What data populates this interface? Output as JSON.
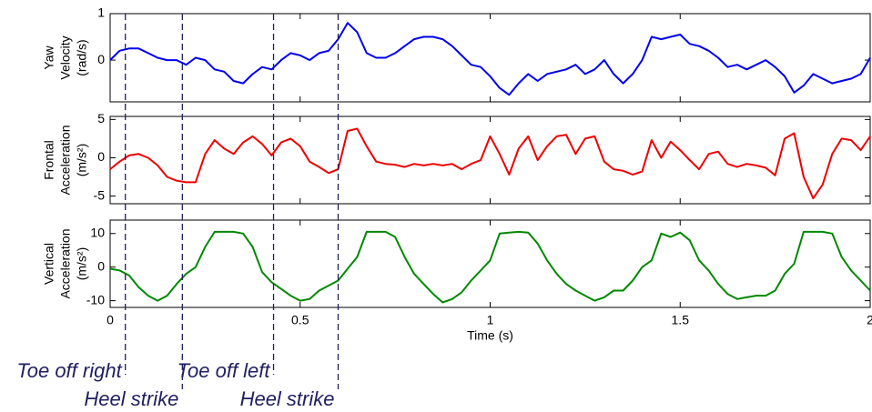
{
  "chart_data": [
    {
      "type": "line",
      "ylabel": [
        "Yaw",
        "Velocity",
        "(rad/s)"
      ],
      "x": [
        0,
        0.025,
        0.05,
        0.075,
        0.1,
        0.125,
        0.15,
        0.175,
        0.2,
        0.225,
        0.25,
        0.275,
        0.3,
        0.325,
        0.35,
        0.375,
        0.4,
        0.425,
        0.45,
        0.475,
        0.5,
        0.525,
        0.55,
        0.575,
        0.6,
        0.625,
        0.65,
        0.675,
        0.7,
        0.725,
        0.75,
        0.775,
        0.8,
        0.825,
        0.85,
        0.875,
        0.9,
        0.925,
        0.95,
        0.975,
        1,
        1.025,
        1.05,
        1.075,
        1.1,
        1.125,
        1.15,
        1.175,
        1.2,
        1.225,
        1.25,
        1.275,
        1.3,
        1.325,
        1.35,
        1.375,
        1.4,
        1.425,
        1.45,
        1.475,
        1.5,
        1.525,
        1.55,
        1.575,
        1.6,
        1.625,
        1.65,
        1.675,
        1.7,
        1.725,
        1.75,
        1.775,
        1.8,
        1.825,
        1.85,
        1.875,
        1.9,
        1.925,
        1.95,
        1.975,
        2
      ],
      "series": [
        {
          "color": "#0000ee",
          "values": [
            0,
            0.2,
            0.25,
            0.25,
            0.15,
            0.05,
            0,
            0,
            -0.1,
            0.05,
            0,
            -0.2,
            -0.25,
            -0.45,
            -0.5,
            -0.3,
            -0.15,
            -0.2,
            0,
            0.15,
            0.1,
            0,
            0.15,
            0.2,
            0.45,
            0.8,
            0.6,
            0.15,
            0.05,
            0.05,
            0.15,
            0.3,
            0.45,
            0.5,
            0.5,
            0.45,
            0.3,
            0.1,
            -0.1,
            -0.15,
            -0.35,
            -0.6,
            -0.75,
            -0.5,
            -0.3,
            -0.45,
            -0.3,
            -0.25,
            -0.2,
            -0.1,
            -0.3,
            -0.2,
            0,
            -0.3,
            -0.5,
            -0.3,
            0,
            0.5,
            0.45,
            0.5,
            0.55,
            0.35,
            0.3,
            0.2,
            0.05,
            -0.15,
            -0.1,
            -0.2,
            -0.1,
            0,
            -0.15,
            -0.35,
            -0.7,
            -0.55,
            -0.3,
            -0.4,
            -0.5,
            -0.45,
            -0.4,
            -0.3,
            0.05
          ]
        }
      ],
      "xlim": [
        0,
        2
      ],
      "xticks": [
        0,
        0.5,
        1,
        1.5,
        2
      ],
      "ylim": [
        -0.9,
        1
      ],
      "yticks": [
        0,
        1
      ]
    },
    {
      "type": "line",
      "ylabel": [
        "Frontal",
        "Acceleration",
        "(m/s²)"
      ],
      "x": [
        0,
        0.025,
        0.05,
        0.075,
        0.1,
        0.125,
        0.15,
        0.175,
        0.2,
        0.225,
        0.25,
        0.275,
        0.3,
        0.325,
        0.35,
        0.375,
        0.4,
        0.425,
        0.45,
        0.475,
        0.5,
        0.525,
        0.55,
        0.575,
        0.6,
        0.625,
        0.65,
        0.675,
        0.7,
        0.725,
        0.75,
        0.775,
        0.8,
        0.825,
        0.85,
        0.875,
        0.9,
        0.925,
        0.95,
        0.975,
        1,
        1.025,
        1.05,
        1.075,
        1.1,
        1.125,
        1.15,
        1.175,
        1.2,
        1.225,
        1.25,
        1.275,
        1.3,
        1.325,
        1.35,
        1.375,
        1.4,
        1.425,
        1.45,
        1.475,
        1.5,
        1.525,
        1.55,
        1.575,
        1.6,
        1.625,
        1.65,
        1.675,
        1.7,
        1.725,
        1.75,
        1.775,
        1.8,
        1.825,
        1.85,
        1.875,
        1.9,
        1.925,
        1.95,
        1.975,
        2
      ],
      "series": [
        {
          "color": "#ee0000",
          "values": [
            -1.5,
            -0.5,
            0.3,
            0.5,
            0,
            -1,
            -2.5,
            -3,
            -3.2,
            -3.2,
            0.5,
            2.3,
            1.2,
            0.5,
            2,
            2.8,
            1.8,
            0.3,
            2,
            2.5,
            1.5,
            -0.5,
            -1.2,
            -2,
            -1.5,
            3.5,
            3.8,
            1.5,
            -0.5,
            -0.8,
            -0.9,
            -1.2,
            -0.8,
            -1,
            -0.8,
            -1,
            -0.8,
            -1.5,
            -0.8,
            -0.3,
            2.8,
            0.5,
            -2.2,
            1.2,
            2.8,
            -0.3,
            1.5,
            2.8,
            3,
            0.5,
            2.5,
            2.8,
            -0.5,
            -1.5,
            -1.7,
            -2.2,
            -1.8,
            2.3,
            0,
            2.1,
            1,
            -0.3,
            -1.5,
            0.5,
            0.8,
            -0.8,
            -1.2,
            -0.8,
            -1,
            -1.3,
            -2.3,
            2.5,
            3.2,
            -2.5,
            -5.3,
            -3.5,
            0.5,
            2.5,
            2.3,
            1,
            2.8
          ]
        }
      ],
      "xlim": [
        0,
        2
      ],
      "xticks": [
        0,
        0.5,
        1,
        1.5,
        2
      ],
      "ylim": [
        -6,
        5.4
      ],
      "yticks": [
        -5,
        0,
        5
      ]
    },
    {
      "type": "line",
      "ylabel": [
        "Vertical",
        "Acceleration",
        "(m/s²)"
      ],
      "xlabel": "Time (s)",
      "show_xticklabels": true,
      "x": [
        0,
        0.025,
        0.05,
        0.075,
        0.1,
        0.125,
        0.15,
        0.175,
        0.2,
        0.225,
        0.25,
        0.275,
        0.3,
        0.325,
        0.35,
        0.375,
        0.4,
        0.425,
        0.45,
        0.475,
        0.5,
        0.525,
        0.55,
        0.575,
        0.6,
        0.625,
        0.65,
        0.675,
        0.7,
        0.725,
        0.75,
        0.775,
        0.8,
        0.825,
        0.85,
        0.875,
        0.9,
        0.925,
        0.95,
        0.975,
        1,
        1.025,
        1.05,
        1.075,
        1.1,
        1.125,
        1.15,
        1.175,
        1.2,
        1.225,
        1.25,
        1.275,
        1.3,
        1.325,
        1.35,
        1.375,
        1.4,
        1.425,
        1.45,
        1.475,
        1.5,
        1.525,
        1.55,
        1.575,
        1.6,
        1.625,
        1.65,
        1.675,
        1.7,
        1.725,
        1.75,
        1.775,
        1.8,
        1.825,
        1.85,
        1.875,
        1.9,
        1.925,
        1.95,
        1.975,
        2
      ],
      "series": [
        {
          "color": "#008800",
          "values": [
            -0.5,
            -1,
            -2.5,
            -6,
            -8.5,
            -10,
            -8.5,
            -5,
            -2,
            0,
            6,
            10.5,
            10.5,
            10.5,
            10,
            6,
            -1.5,
            -4.5,
            -6.5,
            -8.5,
            -10,
            -9.5,
            -7,
            -5.5,
            -4,
            -0.5,
            3,
            10.5,
            10.5,
            10.5,
            9,
            3,
            -2,
            -5,
            -8,
            -10.5,
            -9.5,
            -7.5,
            -4,
            -1,
            2,
            10,
            10.3,
            10.5,
            10.3,
            7,
            2,
            -2,
            -5,
            -7,
            -8.5,
            -10,
            -9,
            -7,
            -7,
            -4,
            0,
            2,
            10,
            9,
            10.3,
            8,
            2,
            -1,
            -5,
            -8,
            -9.5,
            -9,
            -8.5,
            -8.5,
            -7,
            -2,
            1,
            10.5,
            10.5,
            10.5,
            10,
            3,
            -1,
            -4,
            -7
          ]
        }
      ],
      "xlim": [
        0,
        2
      ],
      "xticks": [
        0,
        0.5,
        1,
        1.5,
        2
      ],
      "ylim": [
        -12,
        14
      ],
      "yticks": [
        -10,
        0,
        10
      ]
    }
  ],
  "annotations": [
    {
      "x": 0.04,
      "label": "Toe off right"
    },
    {
      "x": 0.19,
      "label": "Heel strike"
    },
    {
      "x": 0.43,
      "label": "Toe off left"
    },
    {
      "x": 0.6,
      "label": "Heel strike"
    }
  ]
}
